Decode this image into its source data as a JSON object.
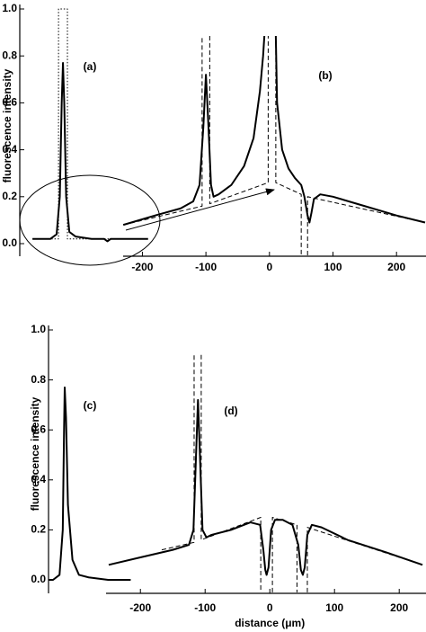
{
  "chart_data": [
    {
      "type": "line",
      "ylabel": "fluorescence intensity",
      "labels": [
        "(a)",
        "(b)"
      ],
      "xlim": [
        -393,
        245
      ],
      "xticks": [
        -200,
        -100,
        0,
        100,
        200
      ],
      "ylim": [
        0,
        1
      ],
      "yticks": [
        {
          "value": 0,
          "label": "0.0"
        },
        0.2,
        0.4,
        0.6,
        0.8,
        {
          "value": 1,
          "label": "1.0"
        }
      ],
      "series": [
        {
          "color": "#000000",
          "style": "solid",
          "x": [
            -373,
            -345,
            -335,
            -330,
            -327,
            -325,
            -323,
            -320,
            -315,
            -305,
            -280,
            -260,
            -255,
            -250,
            -240,
            -215,
            -191
          ],
          "values": [
            0.02,
            0.02,
            0.04,
            0.2,
            0.6,
            0.77,
            0.6,
            0.2,
            0.05,
            0.03,
            0.02,
            0.02,
            0.01,
            0.02,
            0.02,
            0.02,
            0.02
          ]
        },
        {
          "color": "#000000",
          "style": "dotted",
          "x": [
            -373,
            -332,
            -332,
            -318,
            -318,
            -191
          ],
          "values": [
            0.02,
            0.02,
            1.0,
            1.0,
            0.02,
            0.02
          ]
        },
        {
          "color": "#000000",
          "style": "solid",
          "x": [
            -230,
            -180,
            -140,
            -120,
            -110,
            -104,
            -100,
            -96,
            -92,
            -88,
            -80,
            -60,
            -40,
            -25,
            -15,
            -10,
            -8,
            0,
            10,
            12,
            20,
            30,
            40,
            50,
            55,
            60,
            63,
            66,
            70,
            80,
            100,
            150,
            200,
            245
          ],
          "values": [
            0.08,
            0.12,
            0.15,
            0.18,
            0.25,
            0.5,
            0.72,
            0.5,
            0.25,
            0.2,
            0.21,
            0.25,
            0.33,
            0.45,
            0.65,
            0.8,
            0.885,
            null,
            0.885,
            0.6,
            0.4,
            0.32,
            0.28,
            0.25,
            0.2,
            0.12,
            0.09,
            0.13,
            0.19,
            0.21,
            0.2,
            0.16,
            0.12,
            0.09
          ]
        },
        {
          "color": "#000000",
          "style": "dashed",
          "x": [
            -230,
            -106,
            -106,
            -100,
            -94,
            -94,
            -2,
            -2,
            4,
            10,
            10,
            50,
            50,
            55,
            60,
            60,
            245
          ],
          "values": [
            0.08,
            0.16,
            0.885,
            null,
            0.885,
            0.17,
            0.26,
            0.885,
            null,
            0.885,
            0.26,
            0.21,
            -0.05,
            null,
            -0.05,
            0.2,
            0.09
          ]
        }
      ]
    },
    {
      "type": "line",
      "ylabel": "fluorescence intensity",
      "xlabel": "distance (μm)",
      "labels": [
        "(c)",
        "(d)"
      ],
      "xlim": [
        -342,
        240
      ],
      "xticks": [
        -200,
        -100,
        0,
        100,
        200
      ],
      "ylim": [
        0,
        1
      ],
      "yticks": [
        {
          "value": 0,
          "label": "0.0"
        },
        0.2,
        0.4,
        0.6,
        0.8,
        {
          "value": 1,
          "label": "1.0"
        }
      ],
      "series": [
        {
          "color": "#000000",
          "style": "solid",
          "x": [
            -342,
            -335,
            -325,
            -320,
            -318,
            -317,
            -315,
            -312,
            -305,
            -295,
            -280,
            -250,
            -215
          ],
          "values": [
            0,
            0,
            0.02,
            0.2,
            0.6,
            0.77,
            0.65,
            0.3,
            0.08,
            0.02,
            0.01,
            0,
            0
          ]
        },
        {
          "color": "#000000",
          "style": "solid",
          "x": [
            -249,
            -200,
            -150,
            -125,
            -118,
            -114,
            -111,
            -108,
            -104,
            -98,
            -90,
            -60,
            -30,
            -15,
            -10,
            -7,
            -5,
            -2,
            2,
            8,
            20,
            35,
            44,
            48,
            51,
            54,
            58,
            65,
            80,
            120,
            180,
            236
          ],
          "values": [
            0.06,
            0.09,
            0.12,
            0.14,
            0.2,
            0.5,
            0.72,
            0.5,
            0.2,
            0.17,
            0.18,
            0.2,
            0.23,
            0.22,
            0.12,
            0.04,
            0.02,
            0.05,
            0.2,
            0.24,
            0.24,
            0.22,
            0.14,
            0.04,
            0.02,
            0.05,
            0.18,
            0.22,
            0.21,
            0.16,
            0.11,
            0.06
          ]
        },
        {
          "color": "#000000",
          "style": "dashed",
          "x": [
            -167,
            -117,
            -117,
            -111,
            -106,
            -106,
            -14,
            -14,
            -5,
            4,
            4,
            42,
            42,
            50,
            58,
            58,
            236
          ],
          "values": [
            0.12,
            0.15,
            0.9,
            null,
            0.9,
            0.16,
            0.25,
            -0.05,
            null,
            -0.05,
            0.25,
            0.22,
            -0.05,
            null,
            -0.05,
            0.21,
            0.06
          ]
        }
      ]
    }
  ]
}
